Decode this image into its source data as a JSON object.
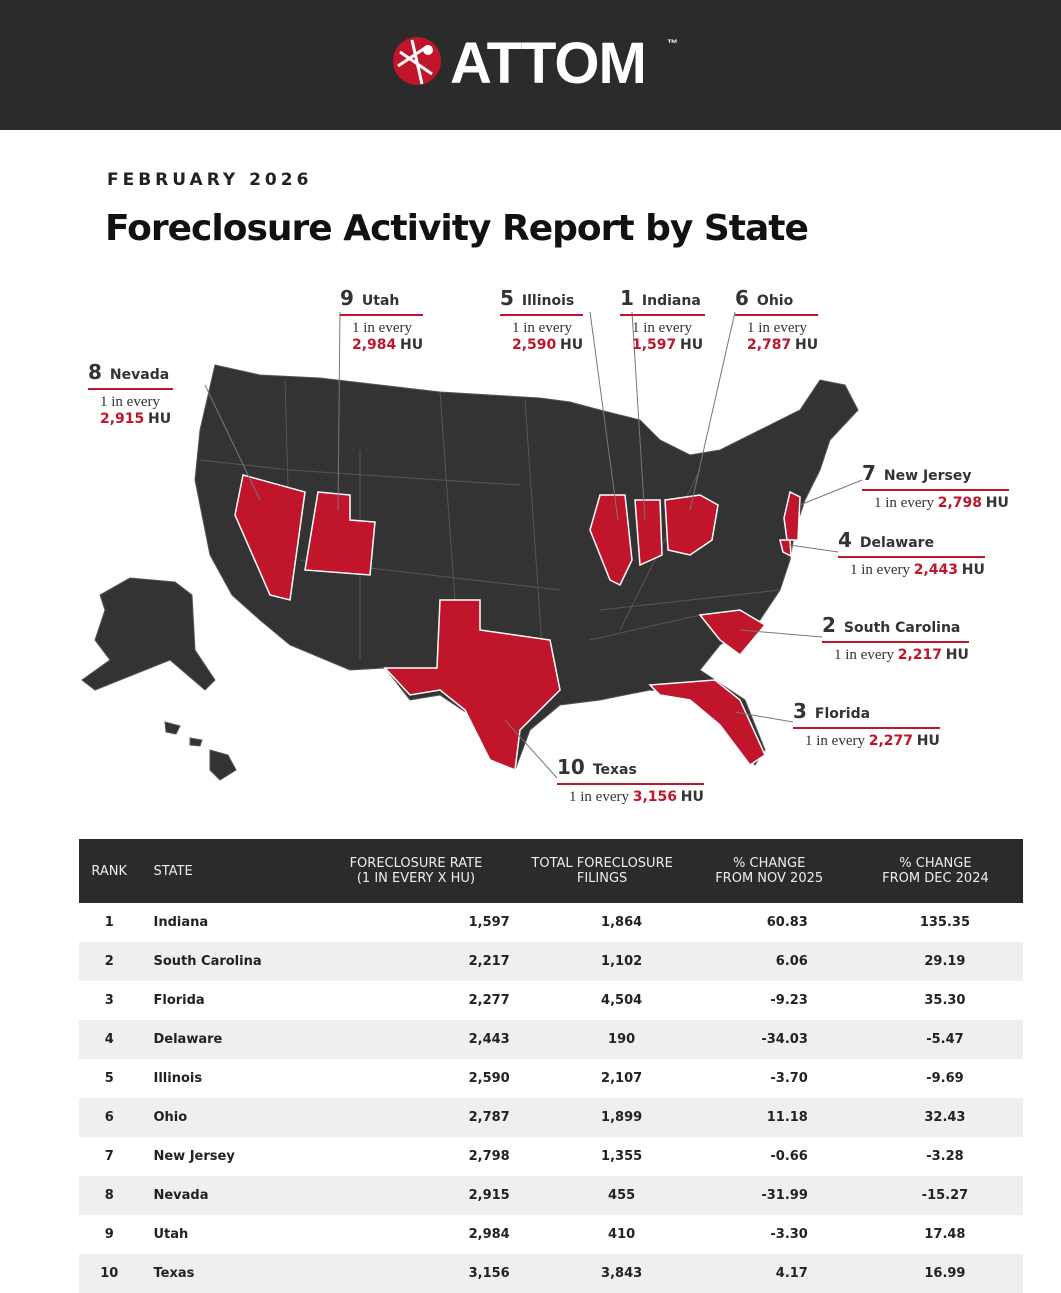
{
  "header": {
    "logo": "ATTOM",
    "trademark": "™"
  },
  "date": "FEBRUARY 2026",
  "title": "Foreclosure Activity Report by State",
  "callouts": [
    {
      "rank": "9",
      "state": "Utah",
      "prefix": "1 in every",
      "value": "2,984",
      "unit": "HU"
    },
    {
      "rank": "5",
      "state": "Illinois",
      "prefix": "1 in every",
      "value": "2,590",
      "unit": "HU"
    },
    {
      "rank": "1",
      "state": "Indiana",
      "prefix": "1 in every",
      "value": "1,597",
      "unit": "HU"
    },
    {
      "rank": "6",
      "state": "Ohio",
      "prefix": "1 in every",
      "value": "2,787",
      "unit": "HU"
    },
    {
      "rank": "8",
      "state": "Nevada",
      "prefix": "1 in every",
      "value": "2,915",
      "unit": "HU"
    },
    {
      "rank": "7",
      "state": "New Jersey",
      "prefix": "1 in every",
      "value": "2,798",
      "unit": "HU"
    },
    {
      "rank": "4",
      "state": "Delaware",
      "prefix": "1 in every",
      "value": "2,443",
      "unit": "HU"
    },
    {
      "rank": "2",
      "state": "South Carolina",
      "prefix": "1 in every",
      "value": "2,217",
      "unit": "HU"
    },
    {
      "rank": "3",
      "state": "Florida",
      "prefix": "1 in every",
      "value": "2,277",
      "unit": "HU"
    },
    {
      "rank": "10",
      "state": "Texas",
      "prefix": "1 in every",
      "value": "3,156",
      "unit": "HU"
    }
  ],
  "table": {
    "headers": [
      [
        "RANK"
      ],
      [
        "STATE"
      ],
      [
        "FORECLOSURE RATE",
        "(1 IN EVERY X HU)"
      ],
      [
        "TOTAL FORECLOSURE",
        "FILINGS"
      ],
      [
        "% CHANGE",
        "FROM NOV 2025"
      ],
      [
        "% CHANGE",
        "FROM DEC 2024"
      ]
    ],
    "rows": [
      [
        "1",
        "Indiana",
        "1,597",
        "1,864",
        "60.83",
        "135.35"
      ],
      [
        "2",
        "South Carolina",
        "2,217",
        "1,102",
        "6.06",
        "29.19"
      ],
      [
        "3",
        "Florida",
        "2,277",
        "4,504",
        "-9.23",
        "35.30"
      ],
      [
        "4",
        "Delaware",
        "2,443",
        "190",
        "-34.03",
        "-5.47"
      ],
      [
        "5",
        "Illinois",
        "2,590",
        "2,107",
        "-3.70",
        "-9.69"
      ],
      [
        "6",
        "Ohio",
        "2,787",
        "1,899",
        "11.18",
        "32.43"
      ],
      [
        "7",
        "New Jersey",
        "2,798",
        "1,355",
        "-0.66",
        "-3.28"
      ],
      [
        "8",
        "Nevada",
        "2,915",
        "455",
        "-31.99",
        "-15.27"
      ],
      [
        "9",
        "Utah",
        "2,984",
        "410",
        "-3.30",
        "17.48"
      ],
      [
        "10",
        "Texas",
        "3,156",
        "3,843",
        "4.17",
        "16.99"
      ]
    ]
  }
}
